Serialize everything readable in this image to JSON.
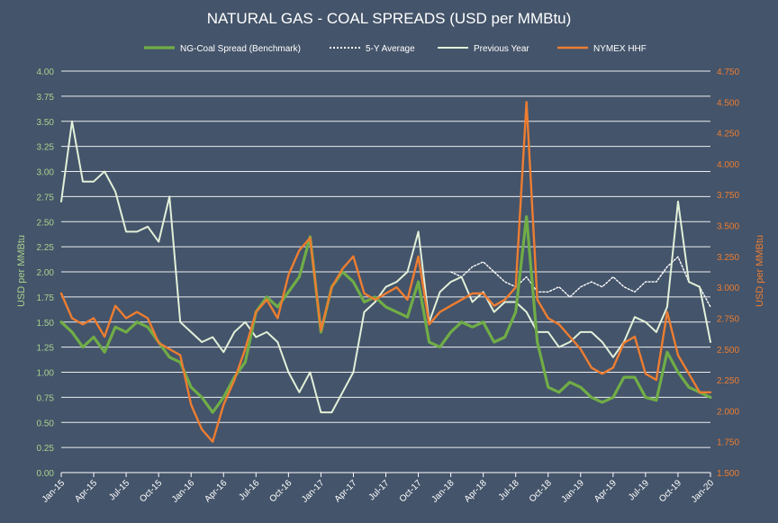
{
  "chart_data": {
    "type": "line",
    "title": "NATURAL GAS - COAL SPREADS (USD per MMBtu)",
    "ylabel_left": "USD per MMBtu",
    "ylabel_right": "USD per MMBtu",
    "ylim_left": [
      0,
      4
    ],
    "ylim_right": [
      1.5,
      4.75
    ],
    "yticks_left": [
      "0.00",
      "0.25",
      "0.50",
      "0.75",
      "1.00",
      "1.25",
      "1.50",
      "1.75",
      "2.00",
      "2.25",
      "2.50",
      "2.75",
      "3.00",
      "3.25",
      "3.50",
      "3.75",
      "4.00"
    ],
    "yticks_right": [
      "1.500",
      "1.750",
      "2.000",
      "2.250",
      "2.500",
      "2.750",
      "3.000",
      "3.250",
      "3.500",
      "3.750",
      "4.000",
      "4.250",
      "4.500",
      "4.750"
    ],
    "x_categories": [
      "Jan-15",
      "Apr-15",
      "Jul-15",
      "Oct-15",
      "Jan-16",
      "Apr-16",
      "Jul-16",
      "Oct-16",
      "Jan-17",
      "Apr-17",
      "Jul-17",
      "Oct-17",
      "Jan-18",
      "Apr-18",
      "Jul-18",
      "Oct-18",
      "Jan-19",
      "Apr-19",
      "Jul-19",
      "Oct-19",
      "Jan-20"
    ],
    "legend_position": "top",
    "grid": true,
    "colors": {
      "benchmark": "#70ad47",
      "five_year": "#ffffff",
      "previous_year": "#e2f0d9",
      "nymex": "#ed7d31",
      "axis_text_left": "#a9d18e",
      "axis_text_right": "#ed7d31",
      "background": "#44546a"
    },
    "series": [
      {
        "name": "NG-Coal Spread (Benchmark)",
        "axis": "left",
        "x": [
          0,
          1,
          2,
          3,
          4,
          5,
          6,
          7,
          8,
          9,
          10,
          11,
          12,
          13,
          14,
          15,
          16,
          17,
          18,
          19,
          20,
          21,
          22,
          23,
          24,
          25,
          26,
          27,
          28,
          29,
          30,
          31,
          32,
          33,
          34,
          35,
          36,
          37,
          38,
          39,
          40,
          41,
          42,
          43,
          44,
          45,
          46,
          47,
          48,
          49,
          50,
          51,
          52,
          53,
          54,
          55,
          56,
          57,
          58,
          59,
          60
        ],
        "values": [
          1.5,
          1.4,
          1.25,
          1.35,
          1.2,
          1.45,
          1.4,
          1.5,
          1.45,
          1.3,
          1.15,
          1.1,
          0.85,
          0.75,
          0.6,
          0.75,
          0.95,
          1.1,
          1.6,
          1.75,
          1.65,
          1.8,
          1.95,
          2.35,
          1.4,
          1.85,
          2.0,
          1.9,
          1.7,
          1.75,
          1.65,
          1.6,
          1.55,
          1.9,
          1.3,
          1.25,
          1.4,
          1.5,
          1.45,
          1.5,
          1.3,
          1.35,
          1.6,
          2.55,
          1.3,
          0.85,
          0.8,
          0.9,
          0.85,
          0.75,
          0.7,
          0.75,
          0.95,
          0.95,
          0.75,
          0.72,
          1.2,
          1.0,
          0.85,
          0.8,
          0.75
        ]
      },
      {
        "name": "5-Y Average",
        "axis": "left",
        "x": [
          36,
          37,
          38,
          39,
          40,
          41,
          42,
          43,
          44,
          45,
          46,
          47,
          48,
          49,
          50,
          51,
          52,
          53,
          54,
          55,
          56,
          57,
          58,
          59,
          60
        ],
        "values": [
          2.0,
          1.95,
          2.05,
          2.1,
          2.0,
          1.9,
          1.85,
          1.95,
          1.8,
          1.8,
          1.85,
          1.75,
          1.85,
          1.9,
          1.85,
          1.95,
          1.85,
          1.8,
          1.9,
          1.9,
          2.05,
          2.15,
          1.9,
          1.85,
          1.65
        ]
      },
      {
        "name": "Previous Year",
        "axis": "left",
        "x": [
          0,
          1,
          2,
          3,
          4,
          5,
          6,
          7,
          8,
          9,
          10,
          11,
          12,
          13,
          14,
          15,
          16,
          17,
          18,
          19,
          20,
          21,
          22,
          23,
          24,
          25,
          26,
          27,
          28,
          29,
          30,
          31,
          32,
          33,
          34,
          35,
          36,
          37,
          38,
          39,
          40,
          41,
          42,
          43,
          44,
          45,
          46,
          47,
          48,
          49,
          50,
          51,
          52,
          53,
          54,
          55,
          56,
          57,
          58,
          59,
          60
        ],
        "values": [
          2.7,
          3.5,
          2.9,
          2.9,
          3.0,
          2.8,
          2.4,
          2.4,
          2.45,
          2.3,
          2.75,
          1.5,
          1.4,
          1.3,
          1.35,
          1.2,
          1.4,
          1.5,
          1.35,
          1.4,
          1.3,
          1.0,
          0.8,
          1.0,
          0.6,
          0.6,
          0.8,
          1.0,
          1.6,
          1.7,
          1.85,
          1.9,
          2.0,
          2.4,
          1.5,
          1.8,
          1.9,
          1.95,
          1.7,
          1.8,
          1.6,
          1.7,
          1.7,
          1.6,
          1.4,
          1.4,
          1.25,
          1.3,
          1.4,
          1.4,
          1.3,
          1.15,
          1.3,
          1.55,
          1.5,
          1.4,
          1.65,
          2.7,
          1.9,
          1.85,
          1.3
        ]
      },
      {
        "name": "NYMEX HHF",
        "axis": "right",
        "x": [
          0,
          1,
          2,
          3,
          4,
          5,
          6,
          7,
          8,
          9,
          10,
          11,
          12,
          13,
          14,
          15,
          16,
          17,
          18,
          19,
          20,
          21,
          22,
          23,
          24,
          25,
          26,
          27,
          28,
          29,
          30,
          31,
          32,
          33,
          34,
          35,
          36,
          37,
          38,
          39,
          40,
          41,
          42,
          43,
          44,
          45,
          46,
          47,
          48,
          49,
          50,
          51,
          52,
          53,
          54,
          55,
          56,
          57,
          58,
          59,
          60
        ],
        "values": [
          2.95,
          2.75,
          2.7,
          2.75,
          2.6,
          2.85,
          2.75,
          2.8,
          2.75,
          2.55,
          2.5,
          2.45,
          2.05,
          1.85,
          1.75,
          2.05,
          2.25,
          2.5,
          2.8,
          2.9,
          2.75,
          3.1,
          3.3,
          3.4,
          2.65,
          3.0,
          3.15,
          3.25,
          2.95,
          2.9,
          2.95,
          3.0,
          2.9,
          3.25,
          2.7,
          2.8,
          2.85,
          2.9,
          2.95,
          2.95,
          2.85,
          2.9,
          3.0,
          4.5,
          2.9,
          2.75,
          2.7,
          2.6,
          2.5,
          2.35,
          2.3,
          2.35,
          2.55,
          2.6,
          2.3,
          2.25,
          2.8,
          2.45,
          2.3,
          2.15,
          2.15
        ]
      }
    ]
  }
}
